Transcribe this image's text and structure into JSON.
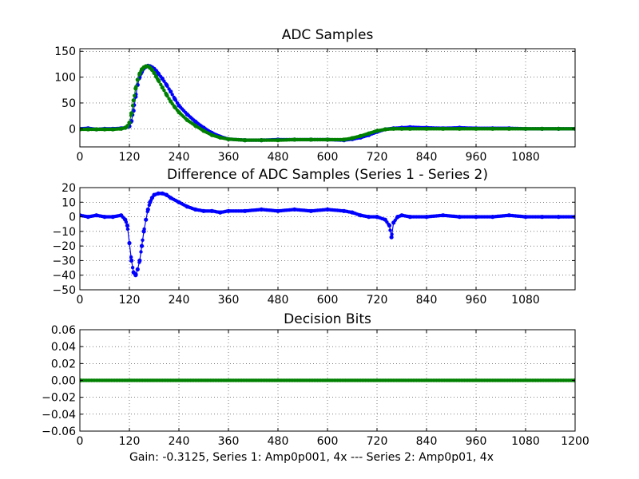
{
  "figure": {
    "footer": "Gain: -0.3125, Series 1: Amp0p001, 4x --- Series 2: Amp0p01, 4x"
  },
  "chart_data": [
    {
      "type": "line",
      "title": "ADC Samples",
      "xlabel": "",
      "ylabel": "",
      "xlim": [
        0,
        1200
      ],
      "ylim": [
        -35,
        155
      ],
      "grid": true,
      "xticks": [
        0,
        120,
        240,
        360,
        480,
        600,
        720,
        840,
        960,
        1080
      ],
      "xtick_labels": [
        "0",
        "120",
        "240",
        "360",
        "480",
        "600",
        "720",
        "840",
        "960",
        "1080"
      ],
      "yticks": [
        150,
        100,
        50,
        0
      ],
      "ytick_labels": [
        "150",
        "100",
        "50",
        "0"
      ],
      "series": [
        {
          "name": "Series 1",
          "color": "#0000ff",
          "style": "line-with-dots",
          "x": [
            0,
            20,
            40,
            60,
            80,
            100,
            110,
            120,
            125,
            130,
            135,
            140,
            145,
            150,
            155,
            160,
            165,
            170,
            175,
            180,
            185,
            190,
            200,
            210,
            220,
            230,
            240,
            260,
            280,
            300,
            320,
            340,
            360,
            400,
            440,
            480,
            520,
            560,
            600,
            640,
            660,
            680,
            700,
            720,
            740,
            760,
            780,
            800,
            840,
            880,
            920,
            960,
            1000,
            1040,
            1080,
            1120,
            1160,
            1200
          ],
          "y": [
            0,
            1,
            -1,
            0,
            0,
            1,
            2,
            5,
            15,
            35,
            62,
            85,
            100,
            110,
            117,
            120,
            122,
            121,
            119,
            116,
            112,
            107,
            97,
            85,
            72,
            58,
            45,
            28,
            14,
            2,
            -8,
            -15,
            -20,
            -22,
            -22,
            -21,
            -21,
            -21,
            -21,
            -22,
            -20,
            -17,
            -12,
            -6,
            -1,
            1,
            2,
            3,
            2,
            1,
            2,
            1,
            1,
            1,
            0,
            0,
            0,
            0
          ]
        },
        {
          "name": "Series 2",
          "color": "#008000",
          "style": "line-with-dots",
          "x": [
            0,
            20,
            40,
            60,
            80,
            100,
            110,
            115,
            120,
            125,
            130,
            135,
            140,
            145,
            150,
            155,
            160,
            165,
            170,
            175,
            180,
            185,
            190,
            200,
            210,
            220,
            230,
            240,
            260,
            280,
            300,
            320,
            340,
            360,
            400,
            440,
            480,
            520,
            560,
            600,
            640,
            660,
            680,
            700,
            720,
            740,
            760,
            780,
            800,
            840,
            880,
            920,
            960,
            1000,
            1040,
            1080,
            1120,
            1160,
            1200
          ],
          "y": [
            -1,
            -1,
            -1,
            -1,
            -1,
            0,
            2,
            5,
            12,
            30,
            55,
            78,
            95,
            107,
            115,
            119,
            121,
            121,
            118,
            114,
            108,
            101,
            94,
            80,
            66,
            53,
            42,
            32,
            17,
            6,
            -4,
            -12,
            -17,
            -20,
            -22,
            -22,
            -22,
            -21,
            -21,
            -21,
            -21,
            -18,
            -14,
            -9,
            -4,
            -1,
            0,
            0,
            0,
            0,
            0,
            0,
            0,
            0,
            0,
            0,
            0,
            0,
            0
          ]
        }
      ]
    },
    {
      "type": "line",
      "title": "Difference of ADC Samples (Series 1 - Series 2)",
      "xlabel": "",
      "ylabel": "",
      "xlim": [
        0,
        1200
      ],
      "ylim": [
        -50,
        20
      ],
      "grid": true,
      "xticks": [
        0,
        120,
        240,
        360,
        480,
        600,
        720,
        840,
        960,
        1080
      ],
      "xtick_labels": [
        "0",
        "120",
        "240",
        "360",
        "480",
        "600",
        "720",
        "840",
        "960",
        "1080"
      ],
      "yticks": [
        20,
        10,
        0,
        -10,
        -20,
        -30,
        -40,
        -50
      ],
      "ytick_labels": [
        "20",
        "10",
        "0",
        "−10",
        "−20",
        "−30",
        "−40",
        "−50"
      ],
      "series": [
        {
          "name": "Series 1 - Series 2",
          "color": "#0000ff",
          "style": "line-with-dots",
          "x": [
            0,
            20,
            40,
            60,
            80,
            100,
            110,
            115,
            120,
            125,
            130,
            135,
            140,
            145,
            150,
            155,
            160,
            165,
            170,
            175,
            180,
            190,
            200,
            210,
            220,
            240,
            260,
            280,
            300,
            320,
            340,
            360,
            400,
            440,
            480,
            520,
            560,
            600,
            640,
            660,
            680,
            700,
            720,
            740,
            750,
            755,
            760,
            770,
            780,
            800,
            840,
            880,
            920,
            960,
            1000,
            1040,
            1080,
            1120,
            1160,
            1200
          ],
          "y": [
            1,
            0,
            1,
            0,
            0,
            1,
            -2,
            -6,
            -18,
            -30,
            -38,
            -40,
            -36,
            -30,
            -20,
            -10,
            -2,
            5,
            10,
            13,
            15,
            16,
            16,
            15,
            13,
            10,
            7,
            5,
            4,
            4,
            3,
            4,
            4,
            5,
            4,
            5,
            4,
            5,
            4,
            3,
            1,
            0,
            0,
            -2,
            -6,
            -14,
            -4,
            0,
            1,
            0,
            0,
            1,
            0,
            0,
            0,
            1,
            0,
            0,
            0,
            0
          ]
        }
      ]
    },
    {
      "type": "line",
      "title": "Decision Bits",
      "xlabel": "",
      "ylabel": "",
      "xlim": [
        0,
        1200
      ],
      "ylim": [
        -0.06,
        0.06
      ],
      "grid": true,
      "xticks": [
        0,
        120,
        240,
        360,
        480,
        600,
        720,
        840,
        960,
        1080,
        1200
      ],
      "xtick_labels": [
        "0",
        "120",
        "240",
        "360",
        "480",
        "600",
        "720",
        "840",
        "960",
        "1080",
        "1200"
      ],
      "yticks": [
        0.06,
        0.04,
        0.02,
        0.0,
        -0.02,
        -0.04,
        -0.06
      ],
      "ytick_labels": [
        "0.06",
        "0.04",
        "0.02",
        "0.00",
        "−0.02",
        "−0.04",
        "−0.06"
      ],
      "series": [
        {
          "name": "Decision Bits",
          "color": "#008000",
          "style": "line-with-dots",
          "x": [
            0,
            1200
          ],
          "y": [
            0,
            0
          ]
        }
      ]
    }
  ]
}
